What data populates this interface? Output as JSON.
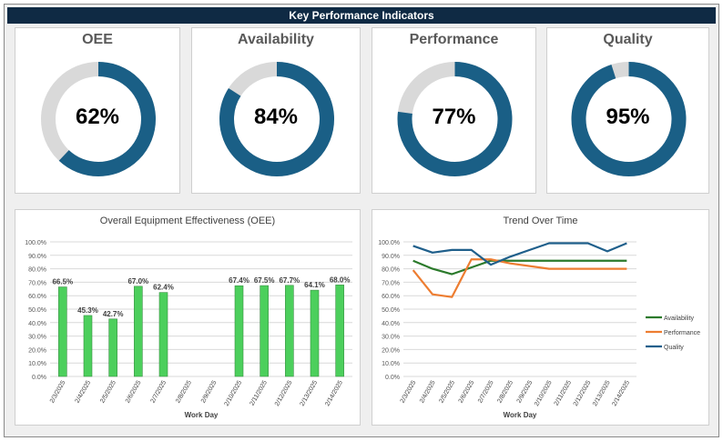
{
  "header": {
    "title": "Key Performance Indicators"
  },
  "kpis": [
    {
      "label": "OEE",
      "value_text": "62%",
      "fraction": 0.62
    },
    {
      "label": "Availability",
      "value_text": "84%",
      "fraction": 0.84
    },
    {
      "label": "Performance",
      "value_text": "77%",
      "fraction": 0.77
    },
    {
      "label": "Quality",
      "value_text": "95%",
      "fraction": 0.95
    }
  ],
  "colors": {
    "ring": "#1a5f86",
    "ring_bg": "#d9d9d9",
    "bar": "#4ccf5c",
    "availability": "#2b7a2b",
    "performance": "#ed7d31",
    "quality": "#1f5f8b"
  },
  "chart_data": [
    {
      "type": "bar",
      "title": "Overall Equipment Effectiveness (OEE)",
      "xlabel": "Work Day",
      "ylabel": "",
      "ylim": [
        0,
        100
      ],
      "yticks": [
        "0.0%",
        "10.0%",
        "20.0%",
        "30.0%",
        "40.0%",
        "50.0%",
        "60.0%",
        "70.0%",
        "80.0%",
        "90.0%",
        "100.0%"
      ],
      "categories": [
        "2/3/2025",
        "2/4/2025",
        "2/5/2025",
        "2/6/2025",
        "2/7/2025",
        "2/8/2025",
        "2/9/2025",
        "2/10/2025",
        "2/11/2025",
        "2/12/2025",
        "2/13/2025",
        "2/14/2025"
      ],
      "values": [
        66.5,
        45.3,
        42.7,
        67.0,
        62.4,
        null,
        null,
        67.4,
        67.5,
        67.7,
        64.1,
        68.0
      ],
      "labels": [
        "66.5%",
        "45.3%",
        "42.7%",
        "67.0%",
        "62.4%",
        "",
        "",
        "67.4%",
        "67.5%",
        "67.7%",
        "64.1%",
        "68.0%"
      ],
      "grid": true
    },
    {
      "type": "line",
      "title": "Trend Over Time",
      "xlabel": "Work Day",
      "ylabel": "",
      "ylim": [
        0,
        100
      ],
      "yticks": [
        "0.0%",
        "10.0%",
        "20.0%",
        "30.0%",
        "40.0%",
        "50.0%",
        "60.0%",
        "70.0%",
        "80.0%",
        "90.0%",
        "100.0%"
      ],
      "categories": [
        "2/3/2025",
        "2/4/2025",
        "2/5/2025",
        "2/6/2025",
        "2/7/2025",
        "2/8/2025",
        "2/9/2025",
        "2/10/2025",
        "2/11/2025",
        "2/12/2025",
        "2/13/2025",
        "2/14/2025"
      ],
      "series": [
        {
          "name": "Availability",
          "values": [
            86,
            80,
            76,
            81,
            86,
            86,
            86,
            86,
            86,
            86,
            86,
            86
          ]
        },
        {
          "name": "Performance",
          "values": [
            79,
            61,
            59,
            87,
            87,
            84,
            82,
            80,
            80,
            80,
            80,
            80
          ]
        },
        {
          "name": "Quality",
          "values": [
            97,
            92,
            94,
            94,
            83,
            89,
            94,
            99,
            99,
            99,
            93,
            99
          ]
        }
      ],
      "legend": "right",
      "grid": true
    }
  ]
}
